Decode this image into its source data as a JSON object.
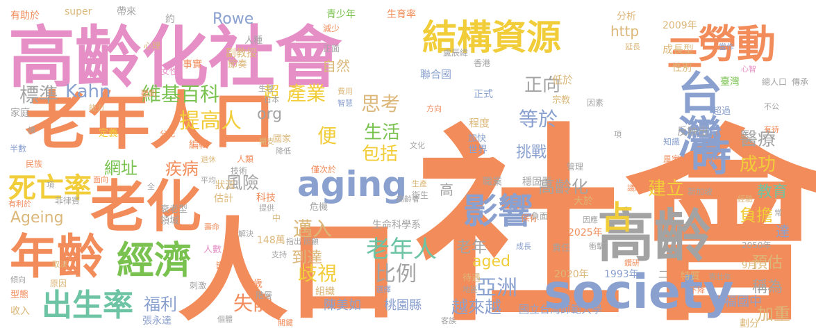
{
  "palette": {
    "orange": "#f28c5a",
    "pink": "#e58fc6",
    "blue": "#8aa0cf",
    "green": "#79c24f",
    "yellow": "#f2cd3a",
    "tan": "#dcb77a",
    "teal": "#6cc4a4",
    "gray": "#a3a3a3"
  },
  "words": [
    {
      "text": "社會",
      "color": "orange",
      "o": "h"
    },
    {
      "text": "人口",
      "color": "orange",
      "o": "h"
    },
    {
      "text": "高齡化社會",
      "color": "pink",
      "o": "h"
    },
    {
      "text": "老年人口",
      "color": "orange",
      "o": "h"
    },
    {
      "text": "老化",
      "color": "orange",
      "o": "h"
    },
    {
      "text": "高齡",
      "color": "gray",
      "o": "h"
    },
    {
      "text": "年齡",
      "color": "orange",
      "o": "h"
    },
    {
      "text": "society",
      "color": "blue",
      "o": "h"
    },
    {
      "text": "台灣",
      "color": "blue",
      "o": "v"
    },
    {
      "text": "勞動",
      "color": "orange",
      "o": "h"
    },
    {
      "text": "結構資源",
      "color": "yellow",
      "o": "h"
    },
    {
      "text": "經濟",
      "color": "green",
      "o": "h"
    },
    {
      "text": "aging",
      "color": "blue",
      "o": "h"
    },
    {
      "text": "影響",
      "color": "blue",
      "o": "h"
    },
    {
      "text": "時",
      "color": "blue",
      "o": "h"
    },
    {
      "text": "出生率",
      "color": "teal",
      "o": "h"
    },
    {
      "text": "老年人",
      "color": "teal",
      "o": "h"
    },
    {
      "text": "比例",
      "color": "gray",
      "o": "h"
    },
    {
      "text": "三",
      "color": "orange",
      "o": "h"
    },
    {
      "text": "占",
      "color": "yellow",
      "o": "h"
    },
    {
      "text": "死亡率",
      "color": "yellow",
      "o": "h"
    },
    {
      "text": "亞洲",
      "color": "blue",
      "o": "h"
    },
    {
      "text": "提高人",
      "color": "yellow",
      "o": "h"
    },
    {
      "text": "維基百科",
      "color": "green",
      "o": "h"
    },
    {
      "text": "產業",
      "color": "yellow",
      "o": "h"
    },
    {
      "text": "思考",
      "color": "tan",
      "o": "h"
    },
    {
      "text": "標準",
      "color": "gray",
      "o": "h"
    },
    {
      "text": "Kahn",
      "color": "blue",
      "o": "h"
    },
    {
      "text": "Rowe",
      "color": "blue",
      "o": "h"
    },
    {
      "text": "邁入",
      "color": "tan",
      "o": "h"
    },
    {
      "text": "歧視",
      "color": "yellow",
      "o": "h"
    },
    {
      "text": "福利",
      "color": "blue",
      "o": "h"
    },
    {
      "text": "失能",
      "color": "orange",
      "o": "h"
    },
    {
      "text": "越來越",
      "color": "blue",
      "o": "h"
    },
    {
      "text": "等於",
      "color": "blue",
      "o": "h"
    },
    {
      "text": "正向",
      "color": "gray",
      "o": "h"
    },
    {
      "text": "挑戰",
      "color": "blue",
      "o": "h"
    },
    {
      "text": "高齡化",
      "color": "gray",
      "o": "h"
    },
    {
      "text": "建立",
      "color": "yellow",
      "o": "h"
    },
    {
      "text": "成功",
      "color": "yellow",
      "o": "h"
    },
    {
      "text": "醫療",
      "color": "gray",
      "o": "h"
    },
    {
      "text": "教育",
      "color": "teal",
      "o": "h"
    },
    {
      "text": "負擔",
      "color": "yellow",
      "o": "h"
    },
    {
      "text": "預估",
      "color": "tan",
      "o": "h"
    },
    {
      "text": "稱為",
      "color": "gray",
      "o": "h"
    },
    {
      "text": "加重",
      "color": "tan",
      "o": "h"
    },
    {
      "text": "達",
      "color": "blue",
      "o": "h"
    },
    {
      "text": "Ageing",
      "color": "tan",
      "o": "h"
    },
    {
      "text": "aged",
      "color": "yellow",
      "o": "h"
    },
    {
      "text": "生活",
      "color": "green",
      "o": "h"
    },
    {
      "text": "包括",
      "color": "yellow",
      "o": "h"
    },
    {
      "text": "便",
      "color": "yellow",
      "o": "h"
    },
    {
      "text": "網址",
      "color": "green",
      "o": "h"
    },
    {
      "text": "疾病",
      "color": "orange",
      "o": "h"
    },
    {
      "text": "風險",
      "color": "gray",
      "o": "h"
    },
    {
      "text": "老年",
      "color": "gray",
      "o": "h"
    },
    {
      "text": "到達",
      "color": "tan",
      "o": "h"
    },
    {
      "text": "http",
      "color": "tan",
      "o": "h"
    },
    {
      "text": "org",
      "color": "gray",
      "o": "h"
    },
    {
      "text": "超",
      "color": "yellow",
      "o": "h"
    },
    {
      "text": "自然",
      "color": "tan",
      "o": "h"
    },
    {
      "text": "幸福國中",
      "color": "blue",
      "o": "h"
    },
    {
      "text": "桃園縣",
      "color": "blue",
      "o": "h"
    },
    {
      "text": "陳美如",
      "color": "blue",
      "o": "h"
    },
    {
      "text": "國立台灣師範大學",
      "color": "blue",
      "o": "h"
    },
    {
      "text": "生命科學系",
      "color": "gray",
      "o": "h"
    },
    {
      "text": "高",
      "color": "gray",
      "o": "h"
    },
    {
      "text": "分析",
      "color": "tan",
      "o": "h"
    },
    {
      "text": "2009年",
      "color": "tan",
      "o": "h"
    },
    {
      "text": "成長型",
      "color": "tan",
      "o": "h"
    },
    {
      "text": "反映出",
      "color": "gray",
      "o": "h"
    },
    {
      "text": "副教授",
      "color": "tan",
      "o": "h"
    },
    {
      "text": "青少年",
      "color": "green",
      "o": "h"
    },
    {
      "text": "生育率",
      "color": "orange",
      "o": "h"
    },
    {
      "text": "正式",
      "color": "blue",
      "o": "h"
    },
    {
      "text": "低於",
      "color": "tan",
      "o": "h"
    },
    {
      "text": "聯合國",
      "color": "blue",
      "o": "h"
    },
    {
      "text": "延長",
      "color": "tan",
      "o": "h"
    },
    {
      "text": "臺灣",
      "color": "green",
      "o": "h"
    },
    {
      "text": "總人口",
      "color": "gray",
      "o": "h"
    },
    {
      "text": "傳承",
      "color": "gray",
      "o": "h"
    },
    {
      "text": "心智",
      "color": "pink",
      "o": "h"
    },
    {
      "text": "當作",
      "color": "blue",
      "o": "h"
    },
    {
      "text": "性別",
      "color": "tan",
      "o": "h"
    },
    {
      "text": "節奏",
      "color": "tan",
      "o": "h"
    },
    {
      "text": "事實",
      "color": "orange",
      "o": "h"
    },
    {
      "text": "女性",
      "color": "pink",
      "o": "h"
    },
    {
      "text": "心理",
      "color": "tan",
      "o": "h"
    },
    {
      "text": "人種",
      "color": "gray",
      "o": "h"
    },
    {
      "text": "super",
      "color": "tan",
      "o": "h"
    },
    {
      "text": "約",
      "color": "gray",
      "o": "h"
    },
    {
      "text": "帶來",
      "color": "gray",
      "o": "h"
    },
    {
      "text": "有助於",
      "color": "orange",
      "o": "h"
    },
    {
      "text": "減少",
      "color": "orange",
      "o": "h"
    },
    {
      "text": "正面",
      "color": "gray",
      "o": "h"
    },
    {
      "text": "盧辰緯",
      "color": "gray",
      "o": "h"
    },
    {
      "text": "香港",
      "color": "gray",
      "o": "h"
    },
    {
      "text": "宗教",
      "color": "tan",
      "o": "h"
    },
    {
      "text": "因素",
      "color": "gray",
      "o": "h"
    },
    {
      "text": "超過",
      "color": "blue",
      "o": "h"
    },
    {
      "text": "不公",
      "color": "gray",
      "o": "h"
    },
    {
      "text": "有待",
      "color": "orange",
      "o": "h"
    },
    {
      "text": "方向",
      "color": "orange",
      "o": "h"
    },
    {
      "text": "費用",
      "color": "tan",
      "o": "h"
    },
    {
      "text": "智慧",
      "color": "blue",
      "o": "h"
    },
    {
      "text": "生理",
      "color": "gray",
      "o": "h"
    },
    {
      "text": "日本",
      "color": "gray",
      "o": "h"
    },
    {
      "text": "聽到",
      "color": "orange",
      "o": "h"
    },
    {
      "text": "能力",
      "color": "tan",
      "o": "h"
    },
    {
      "text": "家庭",
      "color": "gray",
      "o": "h"
    },
    {
      "text": "總",
      "color": "gray",
      "o": "h"
    },
    {
      "text": "定義",
      "color": "yellow",
      "o": "h"
    },
    {
      "text": "分配",
      "color": "orange",
      "o": "h"
    },
    {
      "text": "編輯",
      "color": "orange",
      "o": "h"
    },
    {
      "text": "退休",
      "color": "tan",
      "o": "h"
    },
    {
      "text": "開支",
      "color": "tan",
      "o": "h"
    },
    {
      "text": "國家",
      "color": "tan",
      "o": "h"
    },
    {
      "text": "降低",
      "color": "gray",
      "o": "h"
    },
    {
      "text": "程度",
      "color": "tan",
      "o": "h"
    },
    {
      "text": "加快",
      "color": "blue",
      "o": "h"
    },
    {
      "text": "世界",
      "color": "blue",
      "o": "h"
    },
    {
      "text": "文化",
      "color": "gray",
      "o": "h"
    },
    {
      "text": "僅次於",
      "color": "orange",
      "o": "h"
    },
    {
      "text": "項",
      "color": "gray",
      "o": "h"
    },
    {
      "text": "知識",
      "color": "blue",
      "o": "h"
    },
    {
      "text": "風家",
      "color": "orange",
      "o": "h"
    },
    {
      "text": "討論",
      "color": "orange",
      "o": "h"
    },
    {
      "text": "管理",
      "color": "gray",
      "o": "h"
    },
    {
      "text": "新加坡",
      "color": "gray",
      "o": "h"
    },
    {
      "text": "議題",
      "color": "orange",
      "o": "h"
    },
    {
      "text": "經驗",
      "color": "tan",
      "o": "h"
    },
    {
      "text": "半數",
      "color": "blue",
      "o": "h"
    },
    {
      "text": "民族",
      "color": "orange",
      "o": "h"
    },
    {
      "text": "項",
      "color": "gray",
      "o": "h"
    },
    {
      "text": "面向",
      "color": "orange",
      "o": "h"
    },
    {
      "text": "全",
      "color": "gray",
      "o": "h"
    },
    {
      "text": "人類",
      "color": "orange",
      "o": "h"
    },
    {
      "text": "技術",
      "color": "gray",
      "o": "h"
    },
    {
      "text": "平均",
      "color": "gray",
      "o": "h"
    },
    {
      "text": "狀況",
      "color": "tan",
      "o": "h"
    },
    {
      "text": "科技",
      "color": "orange",
      "o": "h"
    },
    {
      "text": "估計",
      "color": "tan",
      "o": "h"
    },
    {
      "text": "危機",
      "color": "gray",
      "o": "h"
    },
    {
      "text": "生產",
      "color": "tan",
      "o": "h"
    },
    {
      "text": "衛生",
      "color": "gray",
      "o": "h"
    },
    {
      "text": "高齡者",
      "color": "gray",
      "o": "h"
    },
    {
      "text": "職業",
      "color": "gray",
      "o": "h"
    },
    {
      "text": "穩固型",
      "color": "gray",
      "o": "h"
    },
    {
      "text": "有利於",
      "color": "orange",
      "o": "h"
    },
    {
      "text": "菲律賓",
      "color": "gray",
      "o": "h"
    },
    {
      "text": "衰老型",
      "color": "gray",
      "o": "h"
    },
    {
      "text": "領域",
      "color": "gray",
      "o": "h"
    },
    {
      "text": "提供",
      "color": "gray",
      "o": "h"
    },
    {
      "text": "壽命",
      "color": "orange",
      "o": "h"
    },
    {
      "text": "中",
      "color": "tan",
      "o": "h"
    },
    {
      "text": "解決",
      "color": "gray",
      "o": "h"
    },
    {
      "text": "大於",
      "color": "tan",
      "o": "h"
    },
    {
      "text": "保有",
      "color": "orange",
      "o": "h"
    },
    {
      "text": "負面",
      "color": "gray",
      "o": "h"
    },
    {
      "text": "因應",
      "color": "gray",
      "o": "h"
    },
    {
      "text": "2025年",
      "color": "orange",
      "o": "h"
    },
    {
      "text": "老師",
      "color": "orange",
      "o": "h"
    },
    {
      "text": "人數",
      "color": "pink",
      "o": "h"
    },
    {
      "text": "148萬",
      "color": "tan",
      "o": "h"
    },
    {
      "text": "指出",
      "color": "gray",
      "o": "h"
    },
    {
      "text": "照顧",
      "color": "gray",
      "o": "h"
    },
    {
      "text": "成長",
      "color": "blue",
      "o": "h"
    },
    {
      "text": "責任",
      "color": "gray",
      "o": "h"
    },
    {
      "text": "衝擊",
      "color": "gray",
      "o": "h"
    },
    {
      "text": "2050年",
      "color": "gray",
      "o": "h"
    },
    {
      "text": "常",
      "color": "gray",
      "o": "h"
    },
    {
      "text": "取決",
      "color": "tan",
      "o": "h"
    },
    {
      "text": "皆",
      "color": "orange",
      "o": "h"
    },
    {
      "text": "支持",
      "color": "gray",
      "o": "h"
    },
    {
      "text": "2020年",
      "color": "tan",
      "o": "h"
    },
    {
      "text": "1993年",
      "color": "blue",
      "o": "h"
    },
    {
      "text": "二",
      "color": "gray",
      "o": "h"
    },
    {
      "text": "特質",
      "color": "tan",
      "o": "h"
    },
    {
      "text": "青壯年",
      "color": "gray",
      "o": "h"
    },
    {
      "text": "9月",
      "color": "tan",
      "o": "h"
    },
    {
      "text": "鑽研",
      "color": "orange",
      "o": "h"
    },
    {
      "text": "傾向",
      "color": "gray",
      "o": "h"
    },
    {
      "text": "原因",
      "color": "tan",
      "o": "h"
    },
    {
      "text": "刺激",
      "color": "gray",
      "o": "h"
    },
    {
      "text": "歲",
      "color": "orange",
      "o": "h"
    },
    {
      "text": "階層",
      "color": "gray",
      "o": "h"
    },
    {
      "text": "組織",
      "color": "tan",
      "o": "h"
    },
    {
      "text": "選擇",
      "color": "blue",
      "o": "h"
    },
    {
      "text": "待遇",
      "color": "tan",
      "o": "h"
    },
    {
      "text": "地區",
      "color": "gray",
      "o": "h"
    },
    {
      "text": "下降",
      "color": "orange",
      "o": "h"
    },
    {
      "text": "短缺",
      "color": "orange",
      "o": "h"
    },
    {
      "text": "型態",
      "color": "orange",
      "o": "h"
    },
    {
      "text": "收入",
      "color": "tan",
      "o": "h"
    },
    {
      "text": "張永達",
      "color": "blue",
      "o": "h"
    },
    {
      "text": "個體",
      "color": "gray",
      "o": "h"
    },
    {
      "text": "關鍵",
      "color": "orange",
      "o": "h"
    },
    {
      "text": "客族",
      "color": "gray",
      "o": "h"
    },
    {
      "text": "劃分",
      "color": "tan",
      "o": "h"
    }
  ]
}
